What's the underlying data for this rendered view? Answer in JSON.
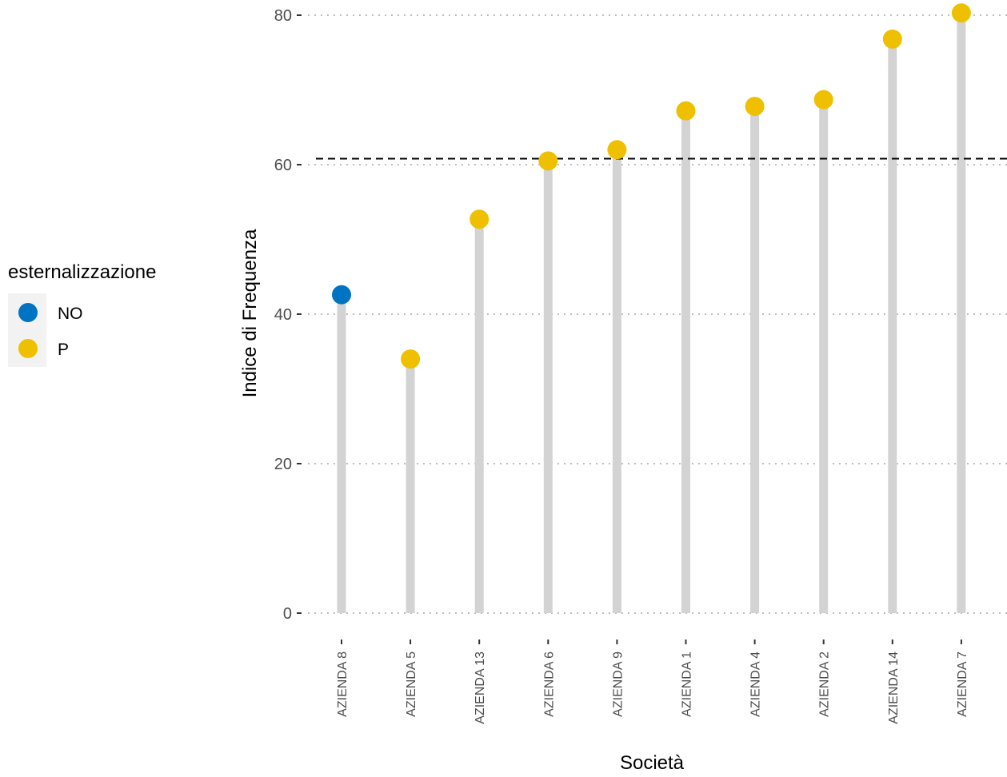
{
  "chart_data": {
    "type": "lollipop",
    "title": "",
    "xlabel": "Società",
    "ylabel": "Indice di Frequenza",
    "ylim": [
      0,
      80.5
    ],
    "yticks": [
      0,
      20,
      40,
      60,
      80
    ],
    "grid": "horizontal-dotted",
    "reference_line": {
      "y": 60.8,
      "style": "dashed"
    },
    "categories": [
      "AZIENDA 8",
      "AZIENDA 5",
      "AZIENDA 13",
      "AZIENDA 6",
      "AZIENDA 9",
      "AZIENDA 1",
      "AZIENDA 4",
      "AZIENDA 2",
      "AZIENDA 14",
      "AZIENDA 7"
    ],
    "values": [
      42.6,
      34.0,
      52.7,
      60.5,
      62.0,
      67.2,
      67.8,
      68.7,
      76.8,
      80.3
    ],
    "groups": [
      "NO",
      "P",
      "P",
      "P",
      "P",
      "P",
      "P",
      "P",
      "P",
      "P"
    ],
    "legend": {
      "title": "esternalizzazione",
      "position": "left",
      "entries": [
        {
          "name": "NO",
          "color": "#0073c2"
        },
        {
          "name": "P",
          "color": "#efc000"
        }
      ]
    },
    "colors": {
      "stem": "#d3d3d3",
      "grid": "#bebebe",
      "reference": "#000000"
    }
  }
}
